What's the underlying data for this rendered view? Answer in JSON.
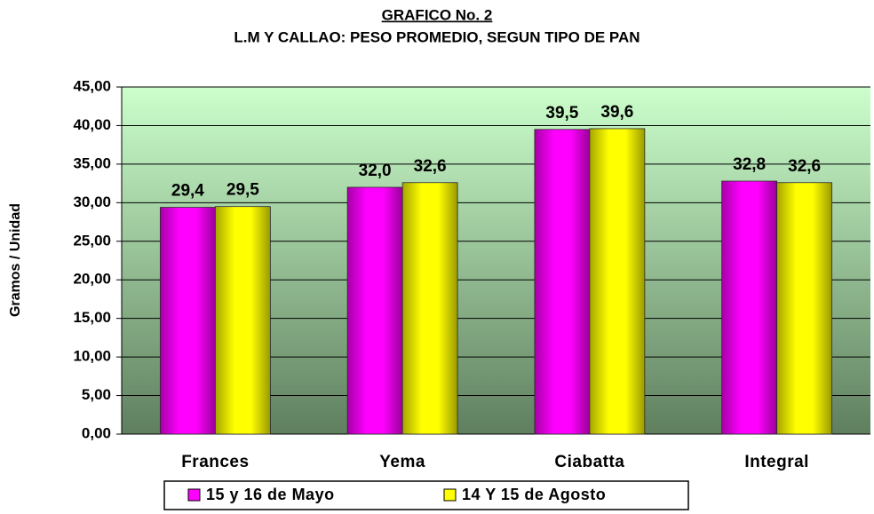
{
  "chart_data": {
    "type": "bar",
    "title": "GRAFICO No. 2",
    "subtitle": "L.M Y CALLAO: PESO PROMEDIO, SEGUN TIPO DE PAN",
    "ylabel": "Gramos / Unidad",
    "categories": [
      "Frances",
      "Yema",
      "Ciabatta",
      "Integral"
    ],
    "series": [
      {
        "name": "15 y 16 de Mayo",
        "color": "#ff00ff",
        "values": [
          29.4,
          32.0,
          39.5,
          32.8
        ],
        "value_labels": [
          "29,4",
          "32,0",
          "39,5",
          "32,8"
        ]
      },
      {
        "name": "14 Y 15 de Agosto",
        "color": "#ffff00",
        "values": [
          29.5,
          32.6,
          39.6,
          32.6
        ],
        "value_labels": [
          "29,5",
          "32,6",
          "39,6",
          "32,6"
        ]
      }
    ],
    "ylim": [
      0,
      45
    ],
    "yticks": [
      {
        "value": 0,
        "label": "0,00"
      },
      {
        "value": 5,
        "label": "5,00"
      },
      {
        "value": 10,
        "label": "10,00"
      },
      {
        "value": 15,
        "label": "15,00"
      },
      {
        "value": 20,
        "label": "20,00"
      },
      {
        "value": 25,
        "label": "25,00"
      },
      {
        "value": 30,
        "label": "30,00"
      },
      {
        "value": 35,
        "label": "35,00"
      },
      {
        "value": 40,
        "label": "40,00"
      },
      {
        "value": 45,
        "label": "45,00"
      }
    ],
    "grid": true
  }
}
